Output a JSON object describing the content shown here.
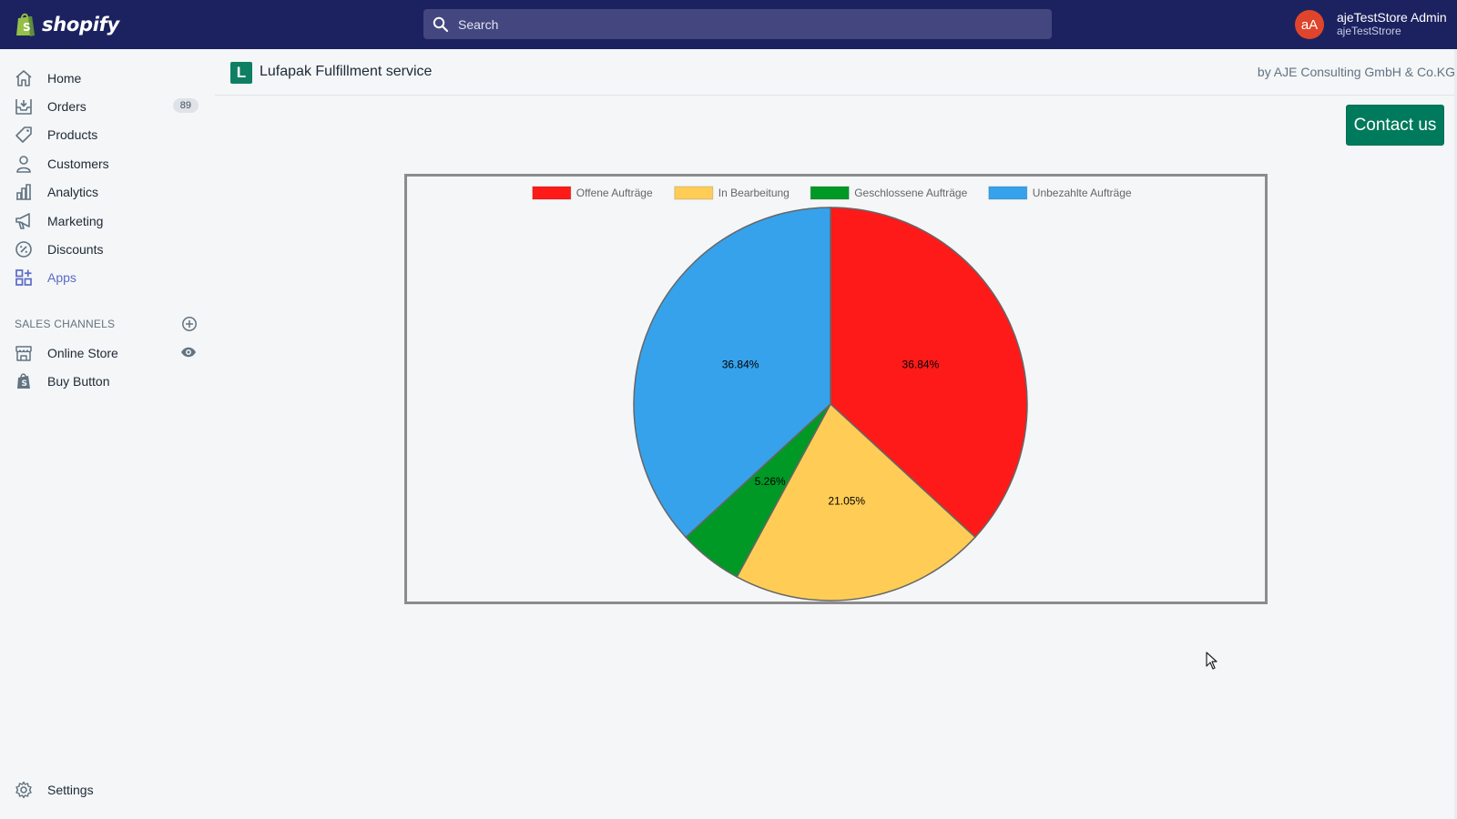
{
  "topbar": {
    "brand": "shopify",
    "search_placeholder": "Search",
    "user": {
      "initials": "aA",
      "name": "ajeTestStore Admin",
      "store": "ajeTestStrore"
    }
  },
  "sidebar": {
    "items": [
      {
        "label": "Home",
        "icon": "home-icon"
      },
      {
        "label": "Orders",
        "icon": "orders-icon",
        "badge": "89"
      },
      {
        "label": "Products",
        "icon": "tag-icon"
      },
      {
        "label": "Customers",
        "icon": "person-icon"
      },
      {
        "label": "Analytics",
        "icon": "bar-chart-icon"
      },
      {
        "label": "Marketing",
        "icon": "megaphone-icon"
      },
      {
        "label": "Discounts",
        "icon": "discount-icon"
      },
      {
        "label": "Apps",
        "icon": "apps-icon",
        "active": true
      }
    ],
    "sales_channels_title": "SALES CHANNELS",
    "channels": [
      {
        "label": "Online Store",
        "icon": "store-icon"
      },
      {
        "label": "Buy Button",
        "icon": "shopping-bag-icon"
      }
    ],
    "settings_label": "Settings"
  },
  "app": {
    "logo_letter": "L",
    "title": "Lufapak Fulfillment service",
    "by": "by AJE Consulting GmbH & Co.KG",
    "contact_label": "Contact us"
  },
  "colors": {
    "topbar": "#1c2260",
    "accent": "#5c6ac4",
    "contact_button": "#007a5c"
  },
  "chart_data": {
    "type": "pie",
    "categories": [
      "Offene Aufträge",
      "In Bearbeitung",
      "Geschlossene Aufträge",
      "Unbezahlte Aufträge"
    ],
    "values": [
      36.84,
      21.05,
      5.26,
      36.84
    ],
    "labels": [
      "36.84%",
      "21.05%",
      "5.26%",
      "36.84%"
    ],
    "colors": [
      "#ff1a1a",
      "#ffcd56",
      "#009926",
      "#36a2eb"
    ],
    "legend_position": "top"
  }
}
